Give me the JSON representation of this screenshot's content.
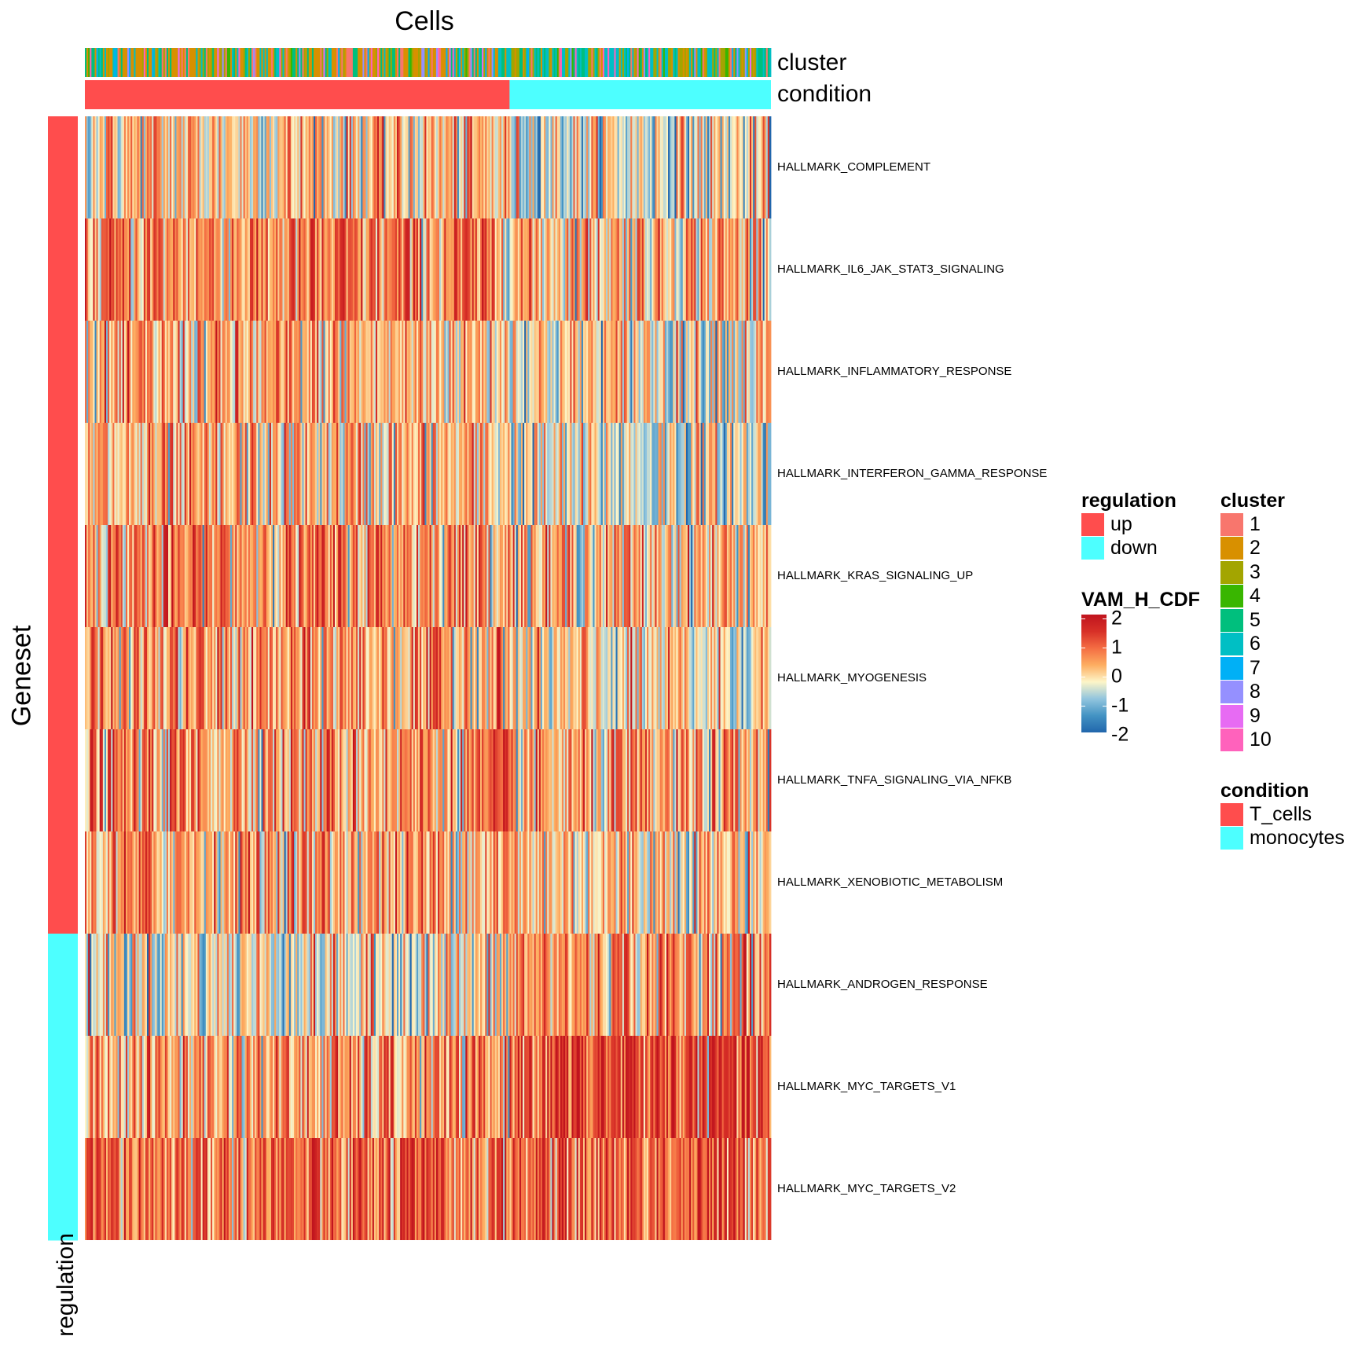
{
  "chart_data": {
    "type": "heatmap",
    "title": "Cells",
    "ylabel": "Geneset",
    "column_annotations": [
      {
        "name": "cluster",
        "levels": [
          "1",
          "2",
          "3",
          "4",
          "5",
          "6",
          "7",
          "8",
          "9",
          "10"
        ]
      },
      {
        "name": "condition",
        "levels": [
          "T_cells",
          "monocytes"
        ],
        "split_fraction": 0.62
      }
    ],
    "row_annotation": {
      "name": "regulation"
    },
    "rows": [
      {
        "label": "HALLMARK_COMPLEMENT",
        "regulation": "up",
        "mean_T_cells": 0.1,
        "mean_monocytes": -0.3
      },
      {
        "label": "HALLMARK_IL6_JAK_STAT3_SIGNALING",
        "regulation": "up",
        "mean_T_cells": 0.6,
        "mean_monocytes": 0.3
      },
      {
        "label": "HALLMARK_INFLAMMATORY_RESPONSE",
        "regulation": "up",
        "mean_T_cells": 0.2,
        "mean_monocytes": -0.1
      },
      {
        "label": "HALLMARK_INTERFERON_GAMMA_RESPONSE",
        "regulation": "up",
        "mean_T_cells": 0.1,
        "mean_monocytes": -0.4
      },
      {
        "label": "HALLMARK_KRAS_SIGNALING_UP",
        "regulation": "up",
        "mean_T_cells": 0.6,
        "mean_monocytes": 0.2
      },
      {
        "label": "HALLMARK_MYOGENESIS",
        "regulation": "up",
        "mean_T_cells": 0.4,
        "mean_monocytes": -0.2
      },
      {
        "label": "HALLMARK_TNFA_SIGNALING_VIA_NFKB",
        "regulation": "up",
        "mean_T_cells": 0.5,
        "mean_monocytes": 0.2
      },
      {
        "label": "HALLMARK_XENOBIOTIC_METABOLISM",
        "regulation": "up",
        "mean_T_cells": 0.4,
        "mean_monocytes": 0.1
      },
      {
        "label": "HALLMARK_ANDROGEN_RESPONSE",
        "regulation": "down",
        "mean_T_cells": -0.2,
        "mean_monocytes": 0.5
      },
      {
        "label": "HALLMARK_MYC_TARGETS_V1",
        "regulation": "down",
        "mean_T_cells": 0.4,
        "mean_monocytes": 1.2
      },
      {
        "label": "HALLMARK_MYC_TARGETS_V2",
        "regulation": "down",
        "mean_T_cells": 0.8,
        "mean_monocytes": 1.0
      }
    ],
    "colorbar": {
      "name": "VAM_H_CDF",
      "range": [
        -2,
        2
      ],
      "ticks": [
        2,
        1,
        0,
        -1,
        -2
      ],
      "colors": [
        "#2166ac",
        "#4393c3",
        "#92c5de",
        "#fdf5c8",
        "#fdae61",
        "#f46d43",
        "#d73027",
        "#c0141e"
      ]
    },
    "grid": false,
    "legend_position": "right"
  },
  "legends": {
    "regulation": {
      "title": "regulation",
      "items": [
        {
          "label": "up",
          "color": "#ff4d4d"
        },
        {
          "label": "down",
          "color": "#4dffff"
        }
      ]
    },
    "colorbar": {
      "title": "VAM_H_CDF",
      "ticks": [
        "2",
        "1",
        "0",
        "-1",
        "-2"
      ]
    },
    "cluster": {
      "title": "cluster",
      "items": [
        {
          "label": "1",
          "color": "#f8766d"
        },
        {
          "label": "2",
          "color": "#d89000"
        },
        {
          "label": "3",
          "color": "#a3a500"
        },
        {
          "label": "4",
          "color": "#39b600"
        },
        {
          "label": "5",
          "color": "#00bf7d"
        },
        {
          "label": "6",
          "color": "#00bfc4"
        },
        {
          "label": "7",
          "color": "#00b0f6"
        },
        {
          "label": "8",
          "color": "#9590ff"
        },
        {
          "label": "9",
          "color": "#e76bf3"
        },
        {
          "label": "10",
          "color": "#ff62bc"
        }
      ]
    },
    "condition": {
      "title": "condition",
      "items": [
        {
          "label": "T_cells",
          "color": "#ff4d4d"
        },
        {
          "label": "monocytes",
          "color": "#4dffff"
        }
      ]
    }
  }
}
